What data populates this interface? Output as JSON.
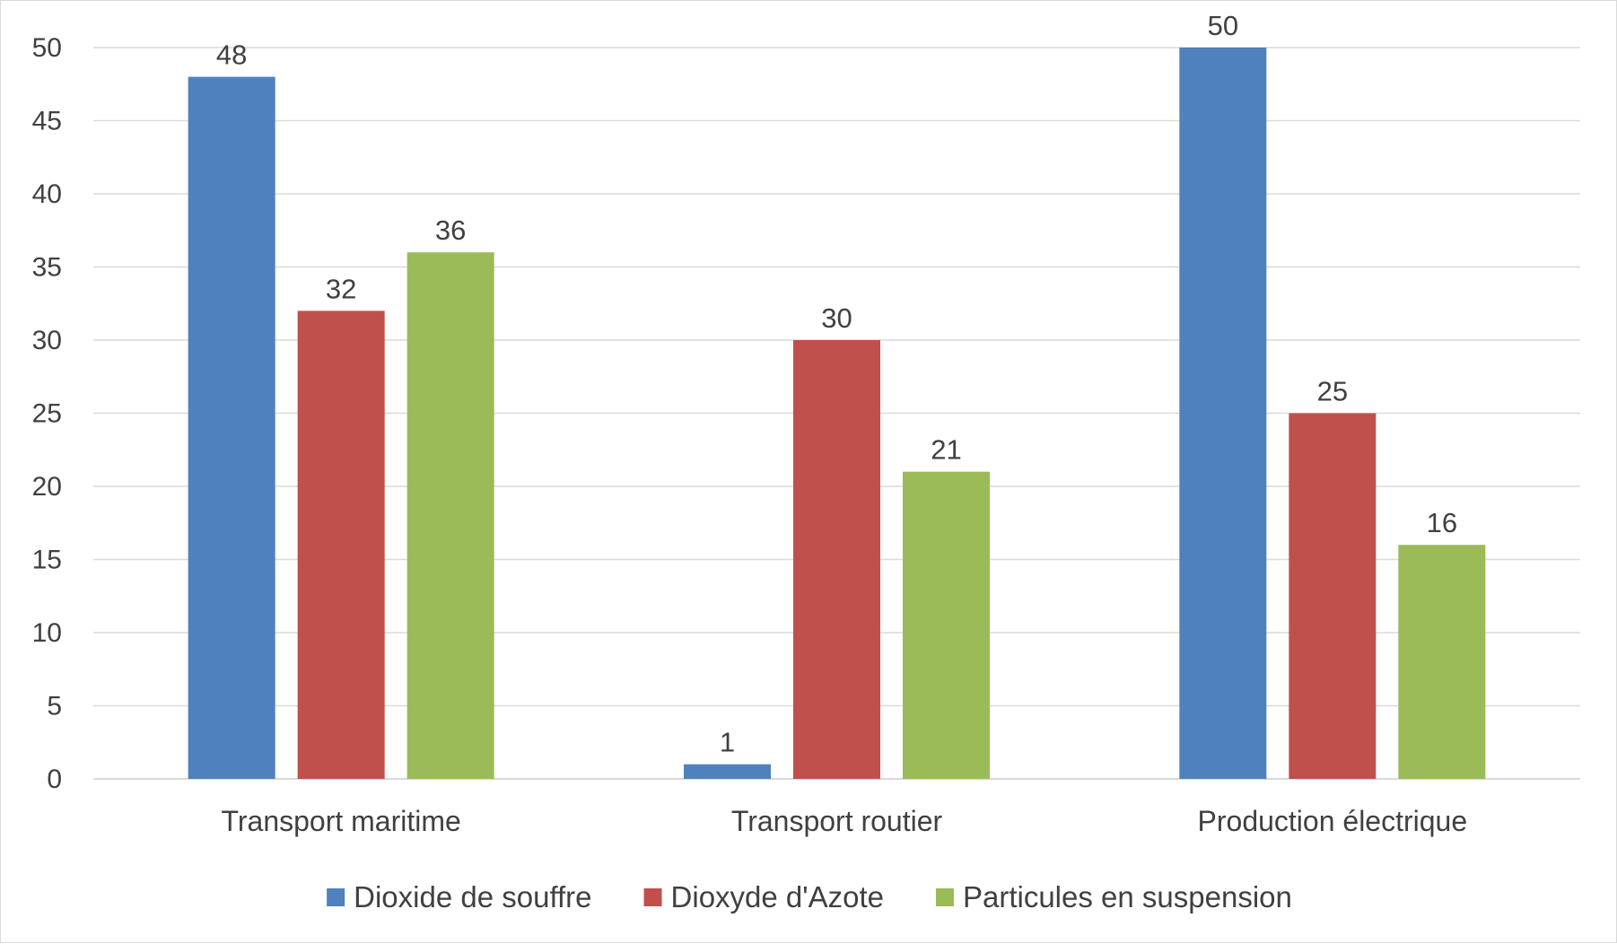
{
  "chart_data": {
    "type": "bar",
    "title": "",
    "xlabel": "",
    "ylabel": "",
    "categories": [
      "Transport maritime",
      "Transport routier",
      "Production électrique"
    ],
    "series": [
      {
        "name": "Dioxide de souffre",
        "color": "#4f81bd",
        "values": [
          48,
          1,
          50
        ]
      },
      {
        "name": "Dioxyde d'Azote",
        "color": "#c0504d",
        "values": [
          32,
          30,
          25
        ]
      },
      {
        "name": "Particules en suspension",
        "color": "#9bbb59",
        "values": [
          36,
          21,
          16
        ]
      }
    ],
    "ylim": [
      0,
      50
    ],
    "yticks": [
      "0",
      "5",
      "10",
      "15",
      "20",
      "25",
      "30",
      "35",
      "40",
      "45",
      "50"
    ],
    "grid": true,
    "gridline_color": "#d9d9d9",
    "data_labels": true,
    "legend_position": "bottom"
  }
}
